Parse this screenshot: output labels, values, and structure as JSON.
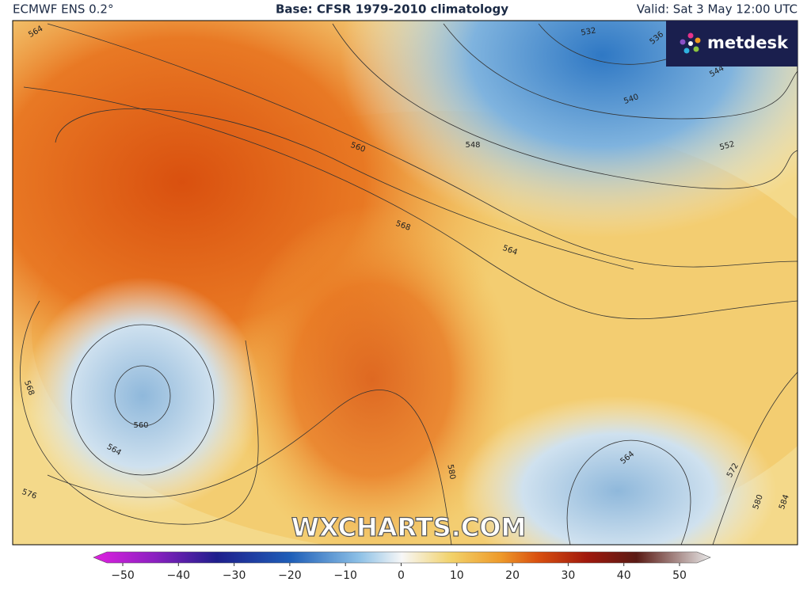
{
  "header": {
    "left": "ECMWF ENS 0.2°",
    "center": "Base: CFSR 1979-2010 climatology",
    "right": "Valid: Sat 3 May 12:00 UTC"
  },
  "logo": "metdesk",
  "watermark": "WXCHARTS.COM",
  "contour_labels": [
    564,
    560,
    568,
    564,
    548,
    552,
    540,
    536,
    532,
    544,
    568,
    560,
    564,
    576,
    580,
    564,
    572,
    580,
    584
  ],
  "colorbar": {
    "ticks": [
      "−50",
      "−40",
      "−30",
      "−20",
      "−10",
      "0",
      "10",
      "20",
      "30",
      "40",
      "50"
    ]
  }
}
